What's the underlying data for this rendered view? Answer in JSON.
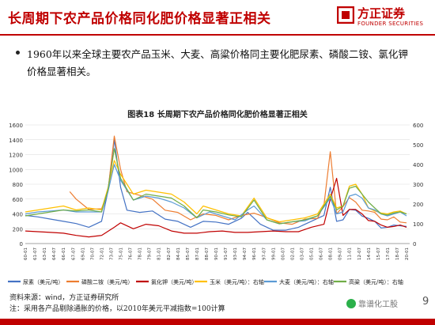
{
  "header": {
    "title": "长周期下农产品价格同化肥价格显著正相关",
    "logo_cn": "方正证券",
    "logo_en": "FOUNDER SECURITIES"
  },
  "bullet": {
    "text": "1960年以来全球主要农产品玉米、大麦、高粱价格同主要化肥尿素、磷酸二铵、氯化钾价格显著相关。"
  },
  "chart_title": "图表18 长周期下农产品价格同化肥价格显著正相关",
  "source": "资料来源：wind，方正证券研究所",
  "note": "注：采用各产品剔除通胀的价格，以2010年美元平减指数=100计算",
  "watermark": "靠谱化工股",
  "page_number": "9",
  "colors": {
    "brand": "#c00000",
    "urea": "#4472c4",
    "dap": "#ed7d31",
    "potash": "#c00000",
    "corn": "#ffc000",
    "barley": "#5b9bd5",
    "sorghum": "#70ad47"
  },
  "chart_data": {
    "type": "line",
    "x_ticks": [
      "60-01",
      "61-07",
      "63-01",
      "64-07",
      "66-01",
      "67-07",
      "69-01",
      "70-07",
      "72-01",
      "73-07",
      "75-01",
      "76-07",
      "78-01",
      "79-07",
      "81-01",
      "82-07",
      "84-01",
      "85-07",
      "87-01",
      "88-07",
      "90-01",
      "91-07",
      "93-01",
      "94-07",
      "96-01",
      "97-07",
      "99-01",
      "00-07",
      "02-01",
      "03-07",
      "05-01",
      "06-07",
      "08-01",
      "09-07",
      "11-01",
      "12-07",
      "14-01",
      "15-07",
      "17-01",
      "18-07",
      "20-01"
    ],
    "y_left": {
      "min": 0,
      "max": 1600,
      "ticks": [
        0,
        200,
        400,
        600,
        800,
        1000,
        1200,
        1400,
        1600
      ]
    },
    "y_right": {
      "min": 0,
      "max": 600,
      "ticks": [
        0,
        100,
        200,
        300,
        400,
        500,
        600
      ]
    },
    "grid": true,
    "legend_position": "bottom",
    "series": [
      {
        "name": "尿素（美元/吨）",
        "axis": "left",
        "color": "#4472c4",
        "width": 1.2,
        "values": [
          [
            1960,
            380
          ],
          [
            1962,
            360
          ],
          [
            1964,
            330
          ],
          [
            1966,
            300
          ],
          [
            1968,
            270
          ],
          [
            1970,
            220
          ],
          [
            1972,
            300
          ],
          [
            1973,
            700
          ],
          [
            1974,
            1400
          ],
          [
            1975,
            760
          ],
          [
            1976,
            450
          ],
          [
            1978,
            420
          ],
          [
            1980,
            440
          ],
          [
            1982,
            330
          ],
          [
            1984,
            300
          ],
          [
            1986,
            220
          ],
          [
            1988,
            300
          ],
          [
            1990,
            290
          ],
          [
            1992,
            260
          ],
          [
            1994,
            340
          ],
          [
            1995,
            420
          ],
          [
            1997,
            260
          ],
          [
            1999,
            180
          ],
          [
            2001,
            180
          ],
          [
            2003,
            220
          ],
          [
            2005,
            300
          ],
          [
            2007,
            380
          ],
          [
            2008,
            760
          ],
          [
            2009,
            300
          ],
          [
            2010,
            320
          ],
          [
            2011,
            460
          ],
          [
            2012,
            450
          ],
          [
            2013,
            370
          ],
          [
            2014,
            340
          ],
          [
            2015,
            300
          ],
          [
            2016,
            210
          ],
          [
            2017,
            220
          ],
          [
            2018,
            250
          ],
          [
            2019,
            240
          ],
          [
            2020,
            230
          ]
        ]
      },
      {
        "name": "磷酸二铵（美元/吨）",
        "axis": "left",
        "color": "#ed7d31",
        "width": 1.2,
        "values": [
          [
            1967,
            700
          ],
          [
            1968,
            600
          ],
          [
            1970,
            460
          ],
          [
            1972,
            470
          ],
          [
            1973,
            700
          ],
          [
            1974,
            1450
          ],
          [
            1975,
            1000
          ],
          [
            1976,
            700
          ],
          [
            1978,
            650
          ],
          [
            1980,
            600
          ],
          [
            1982,
            450
          ],
          [
            1984,
            420
          ],
          [
            1986,
            320
          ],
          [
            1988,
            400
          ],
          [
            1990,
            380
          ],
          [
            1992,
            320
          ],
          [
            1994,
            380
          ],
          [
            1996,
            410
          ],
          [
            1998,
            350
          ],
          [
            2000,
            280
          ],
          [
            2002,
            260
          ],
          [
            2004,
            330
          ],
          [
            2006,
            340
          ],
          [
            2007,
            520
          ],
          [
            2008,
            1240
          ],
          [
            2009,
            400
          ],
          [
            2010,
            500
          ],
          [
            2011,
            620
          ],
          [
            2012,
            560
          ],
          [
            2013,
            450
          ],
          [
            2014,
            440
          ],
          [
            2015,
            420
          ],
          [
            2016,
            330
          ],
          [
            2017,
            320
          ],
          [
            2018,
            360
          ],
          [
            2019,
            290
          ],
          [
            2020,
            280
          ]
        ]
      },
      {
        "name": "氯化钾（美元/吨）",
        "axis": "left",
        "color": "#c00000",
        "width": 1.2,
        "values": [
          [
            1960,
            170
          ],
          [
            1962,
            160
          ],
          [
            1964,
            150
          ],
          [
            1966,
            140
          ],
          [
            1968,
            110
          ],
          [
            1970,
            90
          ],
          [
            1972,
            110
          ],
          [
            1974,
            220
          ],
          [
            1975,
            280
          ],
          [
            1977,
            200
          ],
          [
            1979,
            260
          ],
          [
            1981,
            240
          ],
          [
            1983,
            170
          ],
          [
            1985,
            140
          ],
          [
            1987,
            140
          ],
          [
            1989,
            160
          ],
          [
            1991,
            170
          ],
          [
            1993,
            150
          ],
          [
            1995,
            150
          ],
          [
            1997,
            160
          ],
          [
            1999,
            170
          ],
          [
            2001,
            160
          ],
          [
            2003,
            160
          ],
          [
            2005,
            220
          ],
          [
            2007,
            260
          ],
          [
            2008,
            600
          ],
          [
            2009,
            880
          ],
          [
            2010,
            380
          ],
          [
            2011,
            460
          ],
          [
            2012,
            460
          ],
          [
            2013,
            400
          ],
          [
            2014,
            310
          ],
          [
            2015,
            300
          ],
          [
            2016,
            250
          ],
          [
            2017,
            220
          ],
          [
            2018,
            230
          ],
          [
            2019,
            250
          ],
          [
            2020,
            220
          ]
        ]
      },
      {
        "name": "玉米（美元/吨）：右轴",
        "axis": "right",
        "color": "#ffc000",
        "width": 1.2,
        "values": [
          [
            1960,
            160
          ],
          [
            1962,
            170
          ],
          [
            1964,
            180
          ],
          [
            1966,
            190
          ],
          [
            1968,
            170
          ],
          [
            1970,
            180
          ],
          [
            1972,
            170
          ],
          [
            1973,
            280
          ],
          [
            1974,
            420
          ],
          [
            1975,
            350
          ],
          [
            1977,
            250
          ],
          [
            1979,
            270
          ],
          [
            1981,
            260
          ],
          [
            1983,
            250
          ],
          [
            1985,
            210
          ],
          [
            1987,
            150
          ],
          [
            1988,
            190
          ],
          [
            1990,
            170
          ],
          [
            1992,
            150
          ],
          [
            1994,
            140
          ],
          [
            1996,
            230
          ],
          [
            1998,
            130
          ],
          [
            2000,
            110
          ],
          [
            2002,
            120
          ],
          [
            2004,
            130
          ],
          [
            2006,
            150
          ],
          [
            2008,
            250
          ],
          [
            2009,
            180
          ],
          [
            2010,
            190
          ],
          [
            2011,
            290
          ],
          [
            2012,
            300
          ],
          [
            2013,
            250
          ],
          [
            2014,
            180
          ],
          [
            2015,
            165
          ],
          [
            2016,
            155
          ],
          [
            2017,
            150
          ],
          [
            2018,
            160
          ],
          [
            2019,
            165
          ],
          [
            2020,
            150
          ]
        ]
      },
      {
        "name": "大麦（美元/吨）：右轴",
        "axis": "right",
        "color": "#5b9bd5",
        "width": 1.2,
        "values": [
          [
            1960,
            150
          ],
          [
            1962,
            160
          ],
          [
            1964,
            165
          ],
          [
            1966,
            170
          ],
          [
            1968,
            160
          ],
          [
            1970,
            160
          ],
          [
            1972,
            160
          ],
          [
            1973,
            260
          ],
          [
            1974,
            400
          ],
          [
            1975,
            320
          ],
          [
            1977,
            220
          ],
          [
            1979,
            240
          ],
          [
            1981,
            230
          ],
          [
            1983,
            210
          ],
          [
            1985,
            180
          ],
          [
            1987,
            130
          ],
          [
            1989,
            160
          ],
          [
            1991,
            140
          ],
          [
            1993,
            120
          ],
          [
            1995,
            170
          ],
          [
            1996,
            190
          ],
          [
            1998,
            120
          ],
          [
            2000,
            100
          ],
          [
            2002,
            110
          ],
          [
            2004,
            115
          ],
          [
            2006,
            140
          ],
          [
            2008,
            230
          ],
          [
            2009,
            150
          ],
          [
            2010,
            160
          ],
          [
            2011,
            240
          ],
          [
            2012,
            250
          ],
          [
            2013,
            230
          ],
          [
            2014,
            180
          ],
          [
            2015,
            170
          ],
          [
            2016,
            150
          ],
          [
            2017,
            140
          ],
          [
            2018,
            150
          ],
          [
            2019,
            160
          ],
          [
            2020,
            140
          ]
        ]
      },
      {
        "name": "高粱（美元/吨）：右轴",
        "axis": "right",
        "color": "#70ad47",
        "width": 1.2,
        "values": [
          [
            1960,
            140
          ],
          [
            1962,
            150
          ],
          [
            1964,
            160
          ],
          [
            1966,
            170
          ],
          [
            1968,
            165
          ],
          [
            1970,
            170
          ],
          [
            1972,
            160
          ],
          [
            1973,
            270
          ],
          [
            1974,
            480
          ],
          [
            1975,
            330
          ],
          [
            1977,
            220
          ],
          [
            1979,
            250
          ],
          [
            1981,
            240
          ],
          [
            1983,
            230
          ],
          [
            1985,
            190
          ],
          [
            1987,
            130
          ],
          [
            1988,
            170
          ],
          [
            1990,
            160
          ],
          [
            1992,
            145
          ],
          [
            1994,
            135
          ],
          [
            1996,
            220
          ],
          [
            1998,
            120
          ],
          [
            2000,
            100
          ],
          [
            2002,
            110
          ],
          [
            2004,
            120
          ],
          [
            2006,
            140
          ],
          [
            2008,
            240
          ],
          [
            2009,
            170
          ],
          [
            2010,
            190
          ],
          [
            2011,
            280
          ],
          [
            2012,
            290
          ],
          [
            2013,
            250
          ],
          [
            2014,
            210
          ],
          [
            2015,
            180
          ],
          [
            2016,
            150
          ],
          [
            2017,
            145
          ],
          [
            2018,
            155
          ],
          [
            2019,
            160
          ],
          [
            2020,
            150
          ]
        ]
      }
    ]
  }
}
